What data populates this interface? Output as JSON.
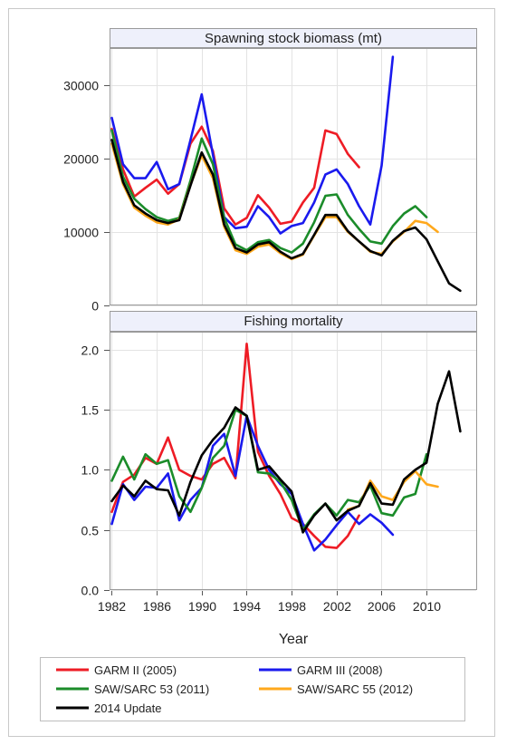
{
  "chart_data": [
    {
      "type": "line",
      "title": "Spawning stock biomass (mt)",
      "ylim": [
        0,
        35000
      ],
      "yticks": [
        0,
        10000,
        20000,
        30000
      ],
      "xlim": [
        1981.8,
        2014.5
      ],
      "xticks": [
        1982,
        1986,
        1990,
        1994,
        1998,
        2002,
        2006,
        2010
      ],
      "grid": true,
      "series": [
        {
          "name": "GARM II (2005)",
          "color": "#ee1c25",
          "x": [
            1982,
            1983,
            1984,
            1985,
            1986,
            1987,
            1988,
            1989,
            1990,
            1991,
            1992,
            1993,
            1994,
            1995,
            1996,
            1997,
            1998,
            1999,
            2000,
            2001,
            2002,
            2003,
            2004
          ],
          "y": [
            24000,
            18500,
            14800,
            16000,
            17100,
            15200,
            16500,
            22000,
            24300,
            21000,
            13200,
            11000,
            11900,
            15000,
            13300,
            11100,
            11400,
            14000,
            16000,
            23800,
            23300,
            20600,
            18800
          ]
        },
        {
          "name": "GARM III (2008)",
          "color": "#1a1aee",
          "x": [
            1982,
            1983,
            1984,
            1985,
            1986,
            1987,
            1988,
            1989,
            1990,
            1991,
            1992,
            1993,
            1994,
            1995,
            1996,
            1997,
            1998,
            1999,
            2000,
            2001,
            2002,
            2003,
            2004,
            2005,
            2006,
            2007
          ],
          "y": [
            25500,
            19200,
            17300,
            17300,
            19500,
            15800,
            16500,
            22500,
            28700,
            20500,
            12000,
            10500,
            10700,
            13500,
            12000,
            9800,
            10800,
            11200,
            14000,
            17800,
            18500,
            16500,
            13500,
            11000,
            19000,
            33800
          ]
        },
        {
          "name": "SAW/SARC 53 (2011)",
          "color": "#1b8c2a",
          "x": [
            1982,
            1983,
            1984,
            1985,
            1986,
            1987,
            1988,
            1989,
            1990,
            1991,
            1992,
            1993,
            1994,
            1995,
            1996,
            1997,
            1998,
            1999,
            2000,
            2001,
            2002,
            2003,
            2004,
            2005,
            2006,
            2007,
            2008,
            2009,
            2010
          ],
          "y": [
            23800,
            17500,
            14500,
            13100,
            12000,
            11500,
            11900,
            17000,
            22700,
            19200,
            11900,
            8300,
            7500,
            8600,
            8900,
            7800,
            7200,
            8400,
            11300,
            14900,
            15100,
            12300,
            10400,
            8700,
            8400,
            10800,
            12500,
            13500,
            12000
          ]
        },
        {
          "name": "SAW/SARC 55 (2012)",
          "color": "#ffa81c",
          "x": [
            1982,
            1983,
            1984,
            1985,
            1986,
            1987,
            1988,
            1989,
            1990,
            1991,
            1992,
            1993,
            1994,
            1995,
            1996,
            1997,
            1998,
            1999,
            2000,
            2001,
            2002,
            2003,
            2004,
            2005,
            2006,
            2007,
            2008,
            2009,
            2010,
            2011
          ],
          "y": [
            22000,
            16500,
            13300,
            12200,
            11300,
            11000,
            11700,
            16400,
            20400,
            17300,
            10700,
            7500,
            7000,
            8000,
            8300,
            7100,
            6300,
            6900,
            9500,
            12000,
            12000,
            10000,
            8700,
            7300,
            7000,
            8700,
            10000,
            11500,
            11200,
            10000
          ]
        },
        {
          "name": "2014 Update",
          "color": "#000000",
          "x": [
            1982,
            1983,
            1984,
            1985,
            1986,
            1987,
            1988,
            1989,
            1990,
            1991,
            1992,
            1993,
            1994,
            1995,
            1996,
            1997,
            1998,
            1999,
            2000,
            2001,
            2002,
            2003,
            2004,
            2005,
            2006,
            2007,
            2008,
            2009,
            2010,
            2011,
            2012,
            2013
          ],
          "y": [
            22500,
            16800,
            13600,
            12500,
            11600,
            11200,
            11600,
            16300,
            20800,
            17800,
            11000,
            7800,
            7200,
            8300,
            8600,
            7300,
            6400,
            7000,
            9600,
            12300,
            12300,
            10100,
            8700,
            7400,
            6800,
            8800,
            10100,
            10600,
            9000,
            6000,
            3000,
            2000
          ]
        }
      ]
    },
    {
      "type": "line",
      "title": "Fishing mortality",
      "xlabel": "Year",
      "ylim": [
        0,
        2.15
      ],
      "yticks": [
        "0.0",
        "0.5",
        "1.0",
        "1.5",
        "2.0"
      ],
      "xlim": [
        1981.8,
        2014.5
      ],
      "xticks": [
        1982,
        1986,
        1990,
        1994,
        1998,
        2002,
        2006,
        2010
      ],
      "grid": true,
      "series": [
        {
          "name": "GARM II (2005)",
          "color": "#ee1c25",
          "x": [
            1982,
            1983,
            1984,
            1985,
            1986,
            1987,
            1988,
            1989,
            1990,
            1991,
            1992,
            1993,
            1994,
            1995,
            1996,
            1997,
            1998,
            1999,
            2000,
            2001,
            2002,
            2003,
            2004
          ],
          "y": [
            0.65,
            0.9,
            0.96,
            1.1,
            1.05,
            1.27,
            1.0,
            0.95,
            0.92,
            1.05,
            1.1,
            0.93,
            2.05,
            1.15,
            0.95,
            0.8,
            0.6,
            0.55,
            0.45,
            0.36,
            0.35,
            0.45,
            0.62
          ]
        },
        {
          "name": "GARM III (2008)",
          "color": "#1a1aee",
          "x": [
            1982,
            1983,
            1984,
            1985,
            1986,
            1987,
            1988,
            1989,
            1990,
            1991,
            1992,
            1993,
            1994,
            1995,
            1996,
            1997,
            1998,
            1999,
            2000,
            2001,
            2002,
            2003,
            2004,
            2005,
            2006,
            2007
          ],
          "y": [
            0.55,
            0.88,
            0.75,
            0.86,
            0.85,
            0.97,
            0.58,
            0.75,
            0.85,
            1.2,
            1.3,
            0.95,
            1.45,
            1.2,
            1.0,
            0.88,
            0.8,
            0.55,
            0.33,
            0.42,
            0.54,
            0.65,
            0.55,
            0.63,
            0.56,
            0.46
          ]
        },
        {
          "name": "SAW/SARC 53 (2011)",
          "color": "#1b8c2a",
          "x": [
            1982,
            1983,
            1984,
            1985,
            1986,
            1987,
            1988,
            1989,
            1990,
            1991,
            1992,
            1993,
            1994,
            1995,
            1996,
            1997,
            1998,
            1999,
            2000,
            2001,
            2002,
            2003,
            2004,
            2005,
            2006,
            2007,
            2008,
            2009,
            2010
          ],
          "y": [
            0.91,
            1.11,
            0.92,
            1.13,
            1.05,
            1.08,
            0.78,
            0.65,
            0.85,
            1.1,
            1.2,
            1.5,
            1.45,
            0.98,
            0.97,
            0.9,
            0.75,
            0.5,
            0.63,
            0.72,
            0.62,
            0.75,
            0.73,
            0.87,
            0.64,
            0.62,
            0.77,
            0.8,
            1.13
          ]
        },
        {
          "name": "SAW/SARC 55 (2012)",
          "color": "#ffa81c",
          "x": [
            2003,
            2004,
            2005,
            2006,
            2007,
            2008,
            2009,
            2010,
            2011
          ],
          "y": [
            0.67,
            0.7,
            0.91,
            0.78,
            0.75,
            0.9,
            0.99,
            0.88,
            0.86
          ]
        },
        {
          "name": "2014 Update",
          "color": "#000000",
          "x": [
            1982,
            1983,
            1984,
            1985,
            1986,
            1987,
            1988,
            1989,
            1990,
            1991,
            1992,
            1993,
            1994,
            1995,
            1996,
            1997,
            1998,
            1999,
            2000,
            2001,
            2002,
            2003,
            2004,
            2005,
            2006,
            2007,
            2008,
            2009,
            2010,
            2011,
            2012,
            2013
          ],
          "y": [
            0.74,
            0.87,
            0.78,
            0.91,
            0.84,
            0.83,
            0.62,
            0.9,
            1.12,
            1.25,
            1.35,
            1.52,
            1.45,
            1.0,
            1.03,
            0.92,
            0.82,
            0.48,
            0.62,
            0.72,
            0.58,
            0.66,
            0.7,
            0.89,
            0.72,
            0.71,
            0.92,
            1.0,
            1.06,
            1.55,
            1.82,
            1.32
          ]
        }
      ]
    }
  ],
  "legend": {
    "placement": "bottom",
    "entries": [
      {
        "label": "GARM II (2005)",
        "color": "#ee1c25"
      },
      {
        "label": "GARM III (2008)",
        "color": "#1a1aee"
      },
      {
        "label": "SAW/SARC 53 (2011)",
        "color": "#1b8c2a"
      },
      {
        "label": "SAW/SARC 55 (2012)",
        "color": "#ffa81c"
      },
      {
        "label": "2014 Update",
        "color": "#000000"
      }
    ]
  }
}
